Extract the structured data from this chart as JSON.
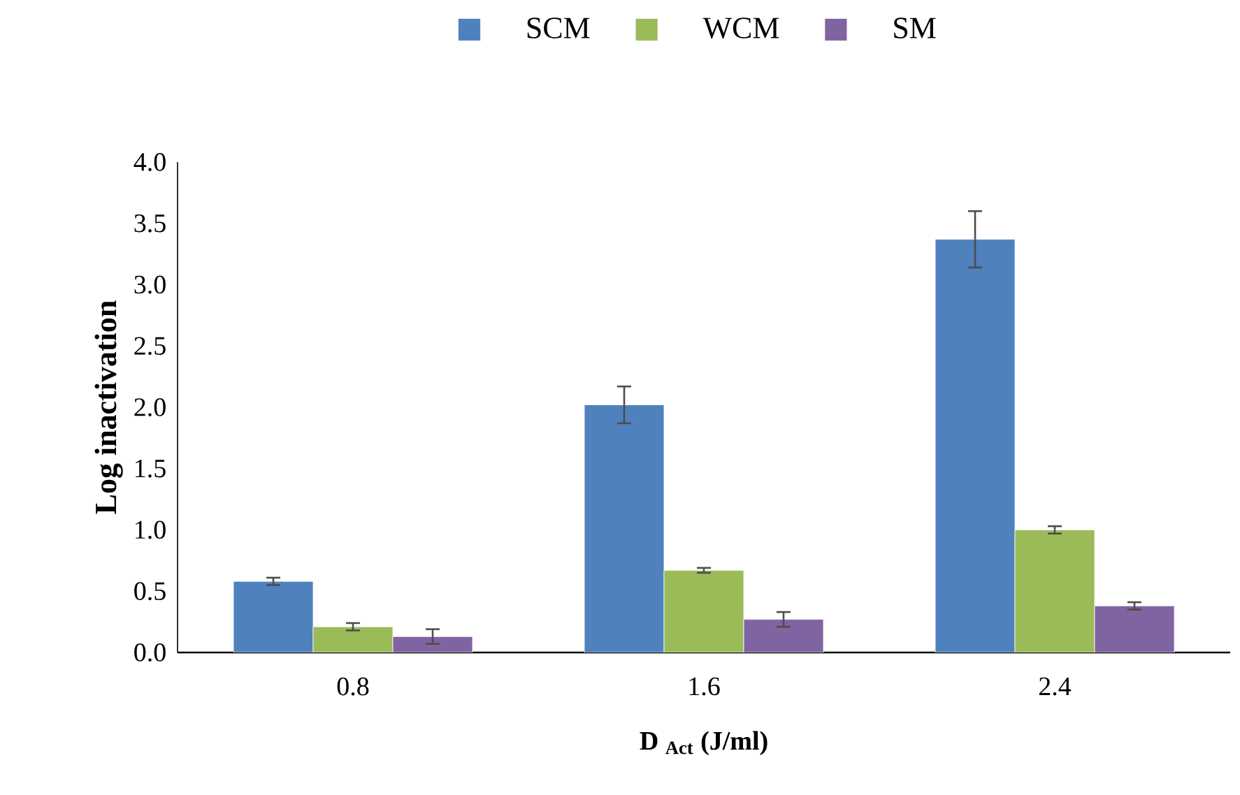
{
  "chart_data": {
    "type": "bar",
    "xlabel": "D $_{Act}$ (J/ml)",
    "ylabel": "Log  inactivation",
    "categories": [
      "0.8",
      "1.6",
      "2.4"
    ],
    "series": [
      {
        "name": "SCM",
        "color": "#4f81bd",
        "values": [
          0.58,
          2.02,
          3.37
        ],
        "errors": [
          0.03,
          0.15,
          0.23
        ]
      },
      {
        "name": "WCM",
        "color": "#9bbb59",
        "values": [
          0.21,
          0.67,
          1.0
        ],
        "errors": [
          0.03,
          0.02,
          0.03
        ]
      },
      {
        "name": "SM",
        "color": "#8064a2",
        "values": [
          0.13,
          0.27,
          0.38
        ],
        "errors": [
          0.06,
          0.06,
          0.03
        ]
      }
    ],
    "ylim": [
      0,
      4
    ],
    "yticks": [
      {
        "value": 0,
        "label": "0.0"
      },
      {
        "value": 0.5,
        "label": "0.5"
      },
      {
        "value": 1,
        "label": "1.0"
      },
      {
        "value": 1.5,
        "label": "1.5"
      },
      {
        "value": 2,
        "label": "2.0"
      },
      {
        "value": 2.5,
        "label": "2.5"
      },
      {
        "value": 3,
        "label": "3.0"
      },
      {
        "value": 3.5,
        "label": "3.5"
      },
      {
        "value": 4,
        "label": "4.0"
      }
    ],
    "grid": false,
    "legend": "top"
  }
}
